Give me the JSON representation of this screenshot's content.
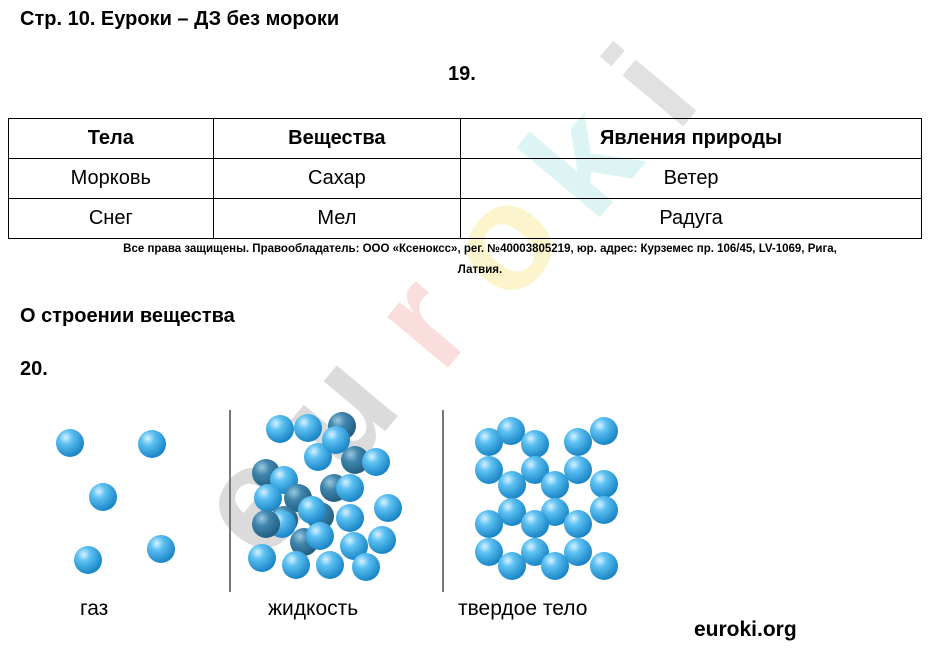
{
  "header": {
    "title": "Стр. 10. Еуроки – ДЗ без мороки"
  },
  "task19": {
    "number": "19.",
    "table": {
      "headers": [
        "Тела",
        "Вещества",
        "Явления природы"
      ],
      "rows": [
        [
          "Морковь",
          "Сахар",
          "Ветер"
        ],
        [
          "Снег",
          "Мел",
          "Радуга"
        ]
      ]
    }
  },
  "copyright": {
    "line1": "Все права защищены. Правообладатель: ООО «Ксеноксс», рег. №40003805219, юр. адрес: Курземес пр. 106/45, LV-1069, Рига,",
    "line2": "Латвия."
  },
  "section": {
    "title": "О строении вещества"
  },
  "task20": {
    "number": "20.",
    "labels": {
      "gas": "газ",
      "liquid": "жидкость",
      "solid": "твердое тело"
    }
  },
  "footer": {
    "site": "euroki.org"
  },
  "watermark": {
    "text": "euroki"
  },
  "colors": {
    "molecule": "#3aa6e0",
    "molecule_dark": "#2f6f94"
  }
}
